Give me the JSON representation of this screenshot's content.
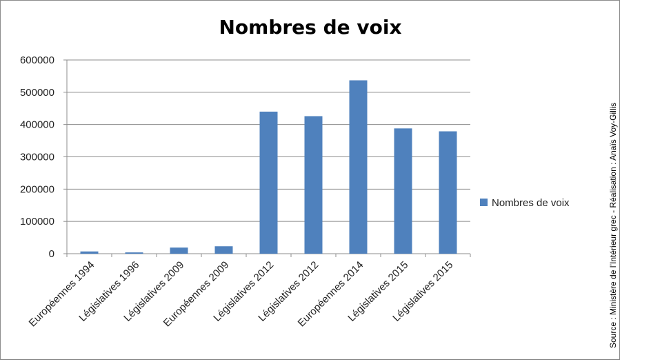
{
  "chart_data": {
    "type": "bar",
    "title": "Nombres de voix",
    "categories": [
      "Européennes 1994",
      "Législatives 1996",
      "Législatives 2009",
      "Européennes 2009",
      "Législatives 2012",
      "Législatives 2012",
      "Européennes 2014",
      "Législatives 2015",
      "Législatives 2015"
    ],
    "series": [
      {
        "name": "Nombres de voix",
        "color": "#4f81bd",
        "values": [
          7000,
          4000,
          19000,
          23000,
          440000,
          426000,
          537000,
          388000,
          379000
        ]
      }
    ],
    "ylim": [
      0,
      600000
    ],
    "yticks": [
      0,
      100000,
      200000,
      300000,
      400000,
      500000,
      600000
    ],
    "grid": true,
    "legend": "right"
  },
  "source_note": "Source : Ministère de l’Intérieur grec - Réalisation : Anaïs Voy-Gillis"
}
